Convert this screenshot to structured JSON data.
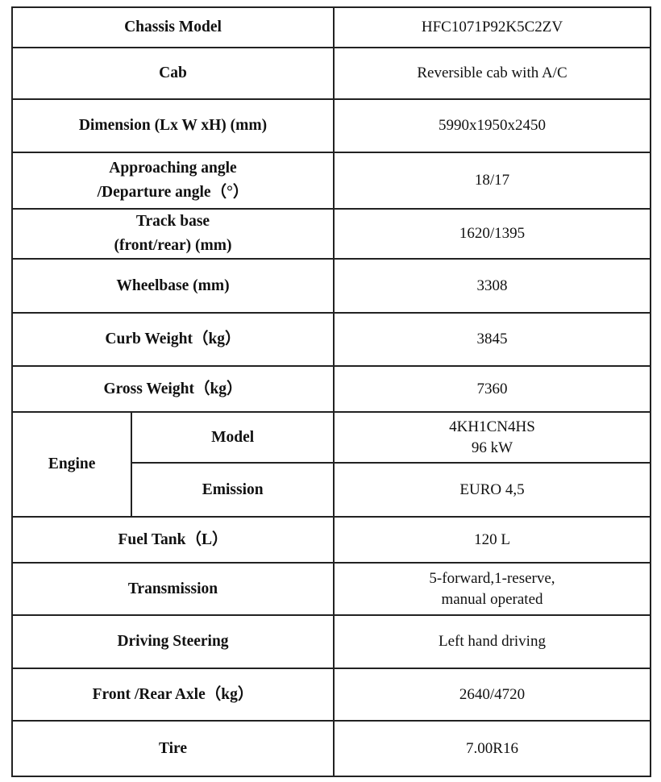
{
  "rows": [
    {
      "label": "Chassis Model",
      "value": "HFC1071P92K5C2ZV"
    },
    {
      "label": "Cab",
      "value": "Reversible cab with A/C"
    },
    {
      "label": "Dimension (Lx W xH) (mm)",
      "value": "5990x1950x2450"
    },
    {
      "label_lines": [
        "Approaching angle",
        "/Departure angle（°）"
      ],
      "value": "18/17"
    },
    {
      "label_lines": [
        "Track base",
        "(front/rear) (mm)"
      ],
      "value": "1620/1395"
    },
    {
      "label": "Wheelbase (mm)",
      "value": "3308"
    },
    {
      "label": "Curb Weight（kg）",
      "value": "3845"
    },
    {
      "label": "Gross Weight（kg）",
      "value": "7360"
    }
  ],
  "engine": {
    "label": "Engine",
    "model_label": "Model",
    "model_lines": [
      "4KH1CN4HS",
      "96 kW"
    ],
    "emission_label": "Emission",
    "emission_value": "EURO 4,5"
  },
  "rows2": [
    {
      "label": "Fuel Tank（L）",
      "value": "120 L"
    },
    {
      "label": "Transmission",
      "value_lines": [
        "5-forward,1-reserve,",
        "manual operated"
      ]
    },
    {
      "label": "Driving Steering",
      "value": "Left hand driving"
    },
    {
      "label": "Front /Rear Axle（kg）",
      "value": "2640/4720"
    },
    {
      "label": "Tire",
      "value": "7.00R16"
    }
  ]
}
